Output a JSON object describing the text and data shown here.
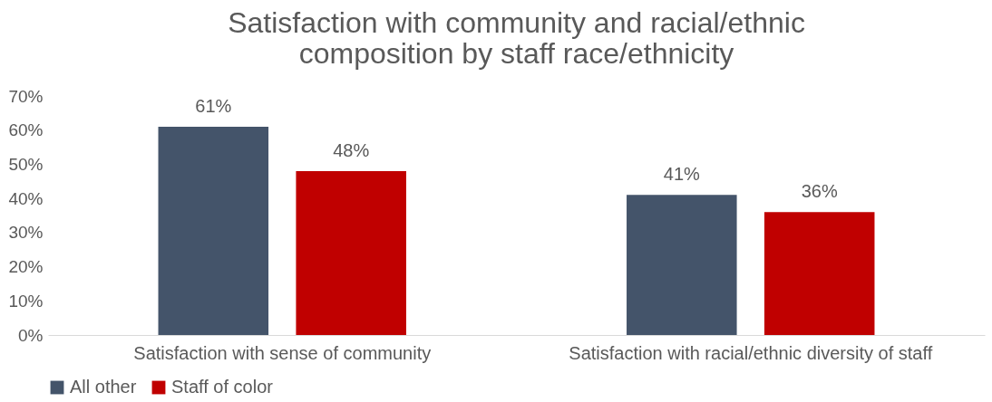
{
  "chart_data": {
    "type": "bar",
    "title": "Satisfaction with community and racial/ethnic composition by staff race/ethnicity",
    "categories": [
      "Satisfaction with sense of community",
      "Satisfaction with racial/ethnic diversity of staff"
    ],
    "series": [
      {
        "name": "All other",
        "color": "#44546a",
        "values": [
          61,
          41
        ],
        "value_labels": [
          "61%",
          "41%"
        ]
      },
      {
        "name": "Staff of color",
        "color": "#c00000",
        "values": [
          48,
          36
        ],
        "value_labels": [
          "48%",
          "36%"
        ]
      }
    ],
    "ylim": [
      0,
      70
    ],
    "yticks": [
      {
        "value": 0,
        "label": "0%"
      },
      {
        "value": 10,
        "label": "10%"
      },
      {
        "value": 20,
        "label": "20%"
      },
      {
        "value": 30,
        "label": "30%"
      },
      {
        "value": 40,
        "label": "40%"
      },
      {
        "value": 50,
        "label": "50%"
      },
      {
        "value": 60,
        "label": "60%"
      },
      {
        "value": 70,
        "label": "70%"
      }
    ],
    "grid": false,
    "legend": "bottom"
  }
}
